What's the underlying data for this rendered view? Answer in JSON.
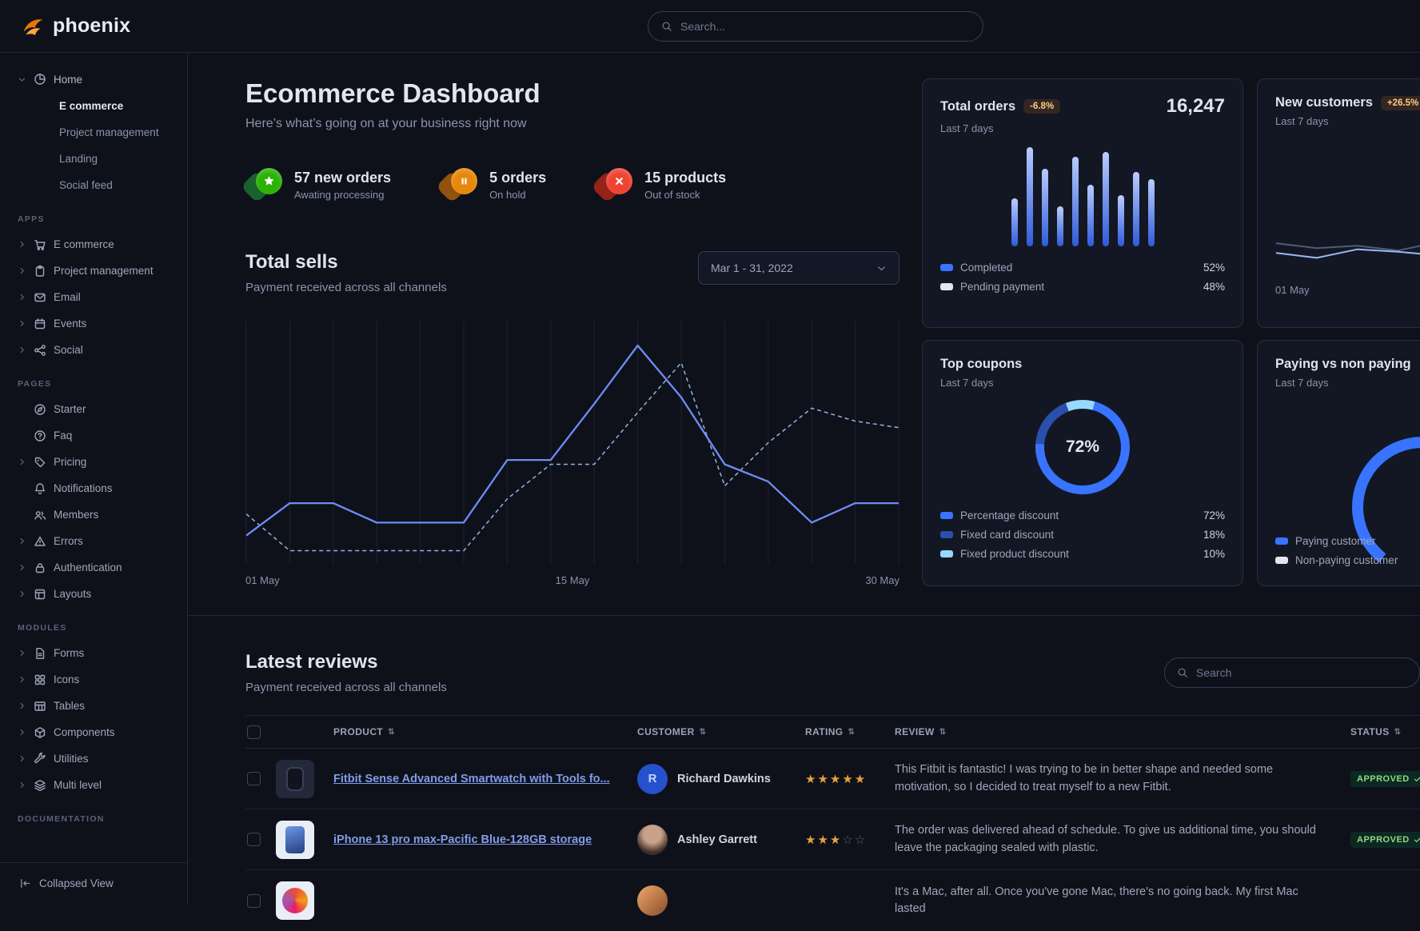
{
  "brand": {
    "name": "phoenix"
  },
  "topbar": {
    "search_placeholder": "Search...",
    "search_icon": "search"
  },
  "sidebar": {
    "home": {
      "label": "Home",
      "icon": "pie-chart",
      "children": [
        {
          "label": "E commerce"
        },
        {
          "label": "Project management"
        },
        {
          "label": "Landing"
        },
        {
          "label": "Social feed"
        }
      ]
    },
    "sections": [
      {
        "title": "APPS",
        "items": [
          {
            "label": "E commerce",
            "icon": "cart"
          },
          {
            "label": "Project management",
            "icon": "clipboard"
          },
          {
            "label": "Email",
            "icon": "envelope"
          },
          {
            "label": "Events",
            "icon": "calendar"
          },
          {
            "label": "Social",
            "icon": "share"
          }
        ]
      },
      {
        "title": "PAGES",
        "items": [
          {
            "label": "Starter",
            "icon": "compass"
          },
          {
            "label": "Faq",
            "icon": "question"
          },
          {
            "label": "Pricing",
            "icon": "tag"
          },
          {
            "label": "Notifications",
            "icon": "bell"
          },
          {
            "label": "Members",
            "icon": "users"
          },
          {
            "label": "Errors",
            "icon": "warning"
          },
          {
            "label": "Authentication",
            "icon": "lock"
          },
          {
            "label": "Layouts",
            "icon": "layout"
          }
        ]
      },
      {
        "title": "MODULES",
        "items": [
          {
            "label": "Forms",
            "icon": "file-text"
          },
          {
            "label": "Icons",
            "icon": "grid"
          },
          {
            "label": "Tables",
            "icon": "table"
          },
          {
            "label": "Components",
            "icon": "package"
          },
          {
            "label": "Utilities",
            "icon": "tools"
          },
          {
            "label": "Multi level",
            "icon": "layers"
          }
        ]
      },
      {
        "title": "DOCUMENTATION",
        "items": []
      }
    ],
    "footer": {
      "label": "Collapsed View",
      "icon": "collapse"
    }
  },
  "page": {
    "title": "Ecommerce Dashboard",
    "subtitle": "Here’s what’s going on at your business right now"
  },
  "stats": [
    {
      "value": "57 new orders",
      "caption": "Awating processing",
      "icon": "star-solid",
      "color": "#2bb207",
      "color_dark": "#1c6c2d"
    },
    {
      "value": "5 orders",
      "caption": "On hold",
      "icon": "pause-solid",
      "color": "#e5880b",
      "color_dark": "#9f5a0b"
    },
    {
      "value": "15 products",
      "caption": "Out of stock",
      "icon": "x-solid",
      "color": "#ef4334",
      "color_dark": "#a22717"
    }
  ],
  "total_sells": {
    "title": "Total sells",
    "subtitle": "Payment received across all channels",
    "date_range": "Mar 1 - 31, 2022",
    "chart": {
      "type": "line",
      "x_labels": [
        "01 May",
        "15 May",
        "30 May"
      ],
      "series": [
        {
          "name": "sells",
          "style": "solid",
          "color": "#6d8df6",
          "values": [
            12,
            27,
            27,
            18,
            18,
            18,
            47,
            47,
            73,
            100,
            76,
            45,
            37,
            18,
            27,
            27
          ]
        },
        {
          "name": "previous period",
          "style": "dashed",
          "color": "#8fb3e6",
          "values": [
            22,
            5,
            5,
            5,
            5,
            5,
            29,
            45,
            45,
            69,
            92,
            35,
            55,
            71,
            65,
            62
          ]
        }
      ]
    }
  },
  "cards": {
    "total_orders": {
      "title": "Total orders",
      "badge": "-6.8%",
      "period": "Last 7 days",
      "value": "16,247",
      "chart": {
        "type": "bar",
        "values": [
          48,
          100,
          78,
          40,
          90,
          62,
          95,
          52,
          75,
          68
        ]
      },
      "legend": [
        {
          "label": "Completed",
          "value": "52%",
          "color": "#3874ff"
        },
        {
          "label": "Pending payment",
          "value": "48%",
          "color": "#e3e6ed"
        }
      ]
    },
    "new_customers": {
      "title": "New customers",
      "badge": "+26.5%",
      "period": "Last 7 days",
      "x_label": "01 May",
      "chart": {
        "type": "line",
        "series": [
          {
            "name": "previous",
            "color": "#525b75",
            "values": [
              38,
              30,
              34,
              26,
              40,
              34,
              30,
              36
            ]
          },
          {
            "name": "new",
            "color": "#9bb9f5",
            "values": [
              22,
              14,
              28,
              24,
              18,
              52,
              34,
              44
            ]
          }
        ]
      }
    },
    "top_coupons": {
      "title": "Top coupons",
      "period": "Last 7 days",
      "center_value": "72%",
      "chart_type": "donut",
      "segments": [
        {
          "label": "Percentage discount",
          "value": "72%",
          "pct": 72,
          "color": "#3874ff"
        },
        {
          "label": "Fixed card discount",
          "value": "18%",
          "pct": 18,
          "color": "#2b4fad"
        },
        {
          "label": "Fixed product discount",
          "value": "10%",
          "pct": 10,
          "color": "#96d9ff"
        }
      ]
    },
    "paying": {
      "title": "Paying vs non paying",
      "period": "Last 7 days",
      "chart_type": "gauge",
      "segments": [
        {
          "label": "Paying customer",
          "pct": 60,
          "color": "#3874ff"
        },
        {
          "label": "Non-paying customer",
          "pct": 40,
          "color": "#e3e6ed"
        }
      ]
    }
  },
  "reviews": {
    "title": "Latest reviews",
    "subtitle": "Payment received across all channels",
    "search_placeholder": "Search",
    "search_icon": "search",
    "sort_glyph": "⇅",
    "columns": [
      "PRODUCT",
      "CUSTOMER",
      "RATING",
      "REVIEW",
      "STATUS"
    ],
    "rows": [
      {
        "product": "Fitbit Sense Advanced Smartwatch with Tools fo...",
        "customer": "Richard Dawkins",
        "customer_initial": "R",
        "rating": 5,
        "review": "This Fitbit is fantastic! I was trying to be in better shape and needed some motivation, so I decided to treat myself to a new Fitbit.",
        "status": "APPROVED"
      },
      {
        "product": "iPhone 13 pro max-Pacific Blue-128GB storage",
        "customer": "Ashley Garrett",
        "rating": 3,
        "review": "The order was delivered ahead of schedule. To give us additional time, you should leave the packaging sealed with plastic.",
        "status": "APPROVED"
      },
      {
        "review": "It's a Mac, after all. Once you've gone Mac, there's no going back. My first Mac lasted"
      }
    ]
  }
}
